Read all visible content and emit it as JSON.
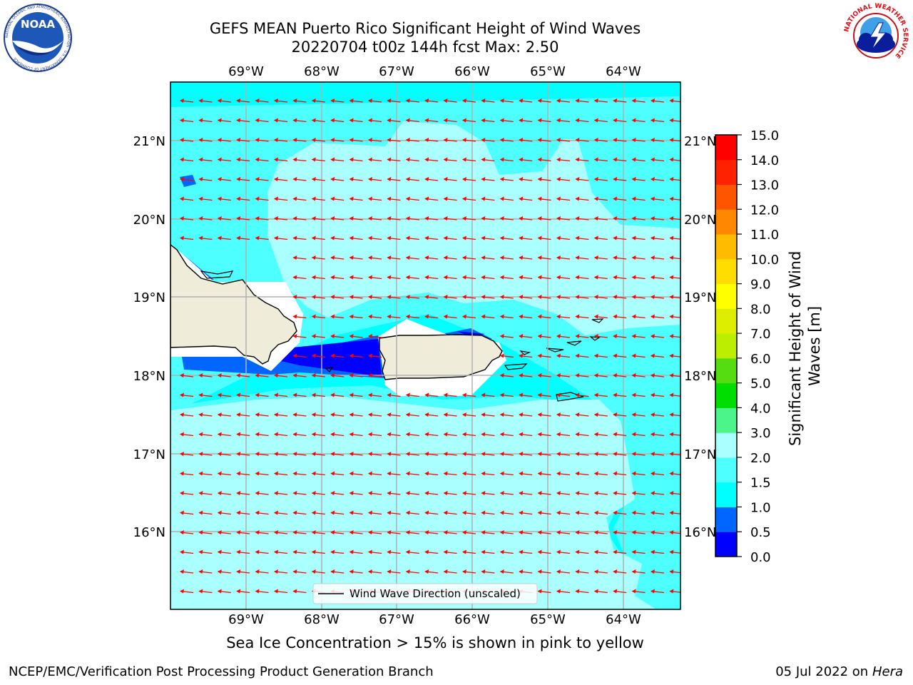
{
  "header": {
    "title_line1": "GEFS MEAN Puerto Rico Significant Height of Wind Waves",
    "title_line2": "20220704 t00z 144h fcst   Max: 2.50"
  },
  "logos": {
    "left": {
      "icon": "noaa-logo",
      "text": "NOAA",
      "ring_text": "NATIONAL OCEANIC AND ATMOSPHERIC ADMINISTRATION · U.S. DEPARTMENT OF COMMERCE"
    },
    "right": {
      "icon": "nws-logo",
      "ring_text": "NATIONAL WEATHER SERVICE"
    }
  },
  "map": {
    "lon_ticks": [
      "69°W",
      "68°W",
      "67°W",
      "66°W",
      "65°W",
      "64°W"
    ],
    "lat_ticks": [
      "21°N",
      "20°N",
      "19°N",
      "18°N",
      "17°N",
      "16°N"
    ],
    "legend_label": "Wind Wave Direction (unscaled)",
    "colors": {
      "band_1_1p5": "#00ffff",
      "band_1p5_2": "#4dffff",
      "band_2_3": "#aaffff",
      "band_0p5_1": "#0066ff",
      "band_0_0p5": "#0000ff",
      "land": "#efedda",
      "arrow": "#ff0000"
    }
  },
  "colorbar": {
    "label": "Significant Height of Wind Waves [m]",
    "ticks": [
      "15.0",
      "14.0",
      "13.0",
      "12.0",
      "11.0",
      "10.0",
      "9.0",
      "8.0",
      "7.0",
      "6.0",
      "5.0",
      "4.0",
      "3.0",
      "2.0",
      "1.5",
      "1.0",
      "0.5",
      "0.0"
    ],
    "bins": [
      {
        "range": "0.0-0.5",
        "color": "#0000ff"
      },
      {
        "range": "0.5-1.0",
        "color": "#0066ff"
      },
      {
        "range": "1.0-1.5",
        "color": "#00ffff"
      },
      {
        "range": "1.5-2.0",
        "color": "#4dffff"
      },
      {
        "range": "2.0-3.0",
        "color": "#aaffff"
      },
      {
        "range": "3.0-4.0",
        "color": "#4bf58a"
      },
      {
        "range": "4.0-5.0",
        "color": "#00dd00"
      },
      {
        "range": "5.0-6.0",
        "color": "#55dd11"
      },
      {
        "range": "6.0-7.0",
        "color": "#bbee00"
      },
      {
        "range": "7.0-8.0",
        "color": "#ddee00"
      },
      {
        "range": "8.0-9.0",
        "color": "#ffff00"
      },
      {
        "range": "9.0-10.0",
        "color": "#ffdd00"
      },
      {
        "range": "10.0-11.0",
        "color": "#ffbb00"
      },
      {
        "range": "11.0-12.0",
        "color": "#ff8800"
      },
      {
        "range": "12.0-13.0",
        "color": "#ff5500"
      },
      {
        "range": "13.0-14.0",
        "color": "#ff2200"
      },
      {
        "range": "14.0-15.0",
        "color": "#ff0000"
      }
    ]
  },
  "caption": "Sea Ice Concentration > 15% is shown in pink to yellow",
  "footer": {
    "left": "NCEP/EMC/Verification Post Processing Product Generation Branch",
    "right_prefix": "05 Jul 2022 on ",
    "right_host": "Hera"
  }
}
